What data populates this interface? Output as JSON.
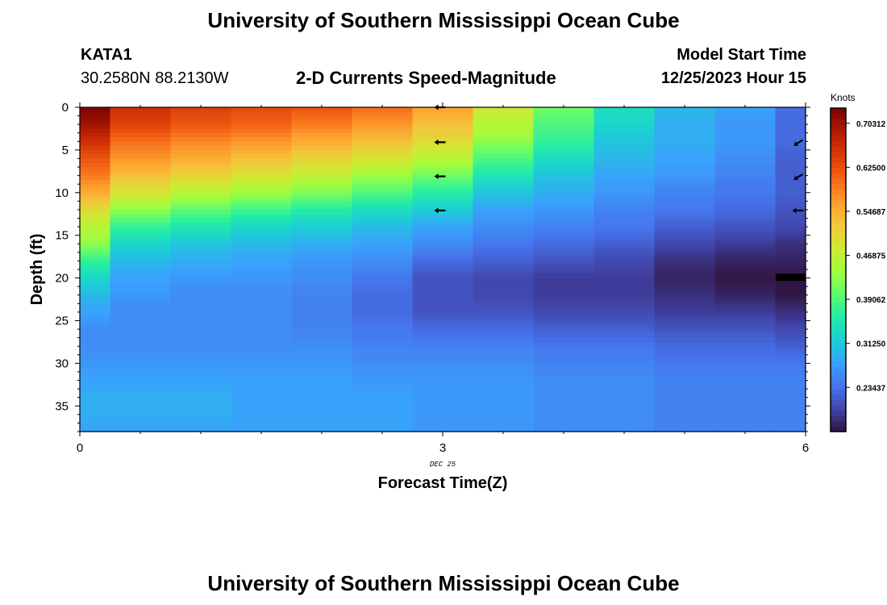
{
  "header": {
    "title": "University of Southern Mississippi Ocean Cube",
    "station_id": "KATA1",
    "station_coords": "30.2580N  88.2130W",
    "subtitle": "2-D Currents Speed-Magnitude",
    "model_start_label": "Model Start Time",
    "model_start_value": "12/25/2023 Hour 15"
  },
  "footer": {
    "title": "University of Southern Mississippi Ocean Cube"
  },
  "chart_data": {
    "type": "heatmap",
    "xlabel": "Forecast Time(Z)",
    "ylabel": "Depth (ft)",
    "x_tick_labels": [
      "0",
      "3",
      "6"
    ],
    "x_date_label": "DEC 25",
    "y_tick_labels": [
      "0",
      "5",
      "10",
      "15",
      "20",
      "25",
      "30",
      "35"
    ],
    "xlim": [
      0,
      6
    ],
    "ylim": [
      0,
      38
    ],
    "y_inverted": true,
    "colorbar": {
      "unit": "Knots",
      "tick_labels": [
        "0.70312",
        "0.62500",
        "0.54687",
        "0.46875",
        "0.39062",
        "0.31250",
        "0.23437"
      ],
      "tick_values": [
        0.70312,
        0.625,
        0.54687,
        0.46875,
        0.39062,
        0.3125,
        0.23437
      ],
      "range": [
        0.156,
        0.73
      ],
      "colormap": [
        "#30123b",
        "#4145ab",
        "#4675ed",
        "#39a2fc",
        "#1bcfd4",
        "#24eca6",
        "#61fc6c",
        "#a4fc3b",
        "#d1e834",
        "#f3c63a",
        "#fe9b2d",
        "#f36315",
        "#d93806",
        "#b11901",
        "#7a0402"
      ]
    },
    "time_columns": [
      0,
      0.5,
      1,
      1.5,
      2,
      2.5,
      3,
      3.5,
      4,
      4.5,
      5,
      5.5,
      6
    ],
    "depth_profile": [
      0,
      2,
      4,
      6,
      8,
      10,
      12,
      14,
      16,
      18,
      20,
      22,
      24,
      26,
      28,
      30,
      32,
      34,
      36,
      38
    ],
    "speed_knots": [
      [
        0.73,
        0.7,
        0.66,
        0.62,
        0.59,
        0.55,
        0.5,
        0.46,
        0.43,
        0.37,
        0.33,
        0.3,
        0.28,
        0.26,
        0.26,
        0.27,
        0.28,
        0.29,
        0.29,
        0.28
      ],
      [
        0.66,
        0.64,
        0.6,
        0.57,
        0.53,
        0.49,
        0.43,
        0.37,
        0.33,
        0.3,
        0.28,
        0.27,
        0.26,
        0.26,
        0.26,
        0.27,
        0.28,
        0.29,
        0.29,
        0.28
      ],
      [
        0.64,
        0.62,
        0.58,
        0.55,
        0.51,
        0.46,
        0.4,
        0.35,
        0.31,
        0.29,
        0.27,
        0.26,
        0.26,
        0.26,
        0.26,
        0.27,
        0.28,
        0.29,
        0.29,
        0.28
      ],
      [
        0.63,
        0.61,
        0.57,
        0.53,
        0.49,
        0.44,
        0.38,
        0.33,
        0.3,
        0.28,
        0.27,
        0.26,
        0.26,
        0.26,
        0.26,
        0.27,
        0.28,
        0.28,
        0.28,
        0.28
      ],
      [
        0.62,
        0.59,
        0.55,
        0.51,
        0.47,
        0.42,
        0.36,
        0.32,
        0.29,
        0.27,
        0.26,
        0.25,
        0.25,
        0.25,
        0.26,
        0.27,
        0.28,
        0.28,
        0.28,
        0.28
      ],
      [
        0.6,
        0.57,
        0.53,
        0.49,
        0.44,
        0.39,
        0.34,
        0.3,
        0.28,
        0.26,
        0.24,
        0.23,
        0.23,
        0.24,
        0.25,
        0.26,
        0.27,
        0.28,
        0.28,
        0.28
      ],
      [
        0.56,
        0.53,
        0.5,
        0.46,
        0.41,
        0.36,
        0.32,
        0.28,
        0.26,
        0.23,
        0.21,
        0.21,
        0.21,
        0.23,
        0.25,
        0.26,
        0.27,
        0.27,
        0.27,
        0.27
      ],
      [
        0.48,
        0.46,
        0.43,
        0.39,
        0.35,
        0.31,
        0.28,
        0.26,
        0.24,
        0.22,
        0.2,
        0.2,
        0.21,
        0.23,
        0.25,
        0.26,
        0.27,
        0.27,
        0.27,
        0.27
      ],
      [
        0.41,
        0.39,
        0.37,
        0.34,
        0.31,
        0.29,
        0.27,
        0.25,
        0.23,
        0.21,
        0.19,
        0.19,
        0.2,
        0.22,
        0.24,
        0.25,
        0.26,
        0.26,
        0.26,
        0.26
      ],
      [
        0.34,
        0.33,
        0.31,
        0.3,
        0.28,
        0.27,
        0.25,
        0.24,
        0.22,
        0.2,
        0.19,
        0.19,
        0.2,
        0.22,
        0.24,
        0.25,
        0.26,
        0.26,
        0.26,
        0.26
      ],
      [
        0.3,
        0.29,
        0.29,
        0.28,
        0.27,
        0.25,
        0.24,
        0.22,
        0.2,
        0.18,
        0.17,
        0.18,
        0.19,
        0.21,
        0.23,
        0.24,
        0.25,
        0.25,
        0.25,
        0.25
      ],
      [
        0.28,
        0.27,
        0.27,
        0.26,
        0.25,
        0.24,
        0.23,
        0.21,
        0.19,
        0.17,
        0.16,
        0.17,
        0.19,
        0.21,
        0.23,
        0.24,
        0.25,
        0.25,
        0.25,
        0.25
      ],
      [
        0.23,
        0.23,
        0.23,
        0.22,
        0.22,
        0.22,
        0.21,
        0.2,
        0.18,
        0.17,
        0.16,
        0.16,
        0.18,
        0.2,
        0.22,
        0.24,
        0.25,
        0.25,
        0.25,
        0.25
      ]
    ],
    "current_vectors": [
      {
        "time": 3,
        "depth": 0,
        "direction": "west"
      },
      {
        "time": 3,
        "depth": 4,
        "direction": "west"
      },
      {
        "time": 3,
        "depth": 8,
        "direction": "west"
      },
      {
        "time": 3,
        "depth": 12,
        "direction": "west"
      },
      {
        "time": 6,
        "depth": 4,
        "direction": "southwest"
      },
      {
        "time": 6,
        "depth": 8,
        "direction": "southwest"
      },
      {
        "time": 6,
        "depth": 12,
        "direction": "west"
      }
    ]
  }
}
